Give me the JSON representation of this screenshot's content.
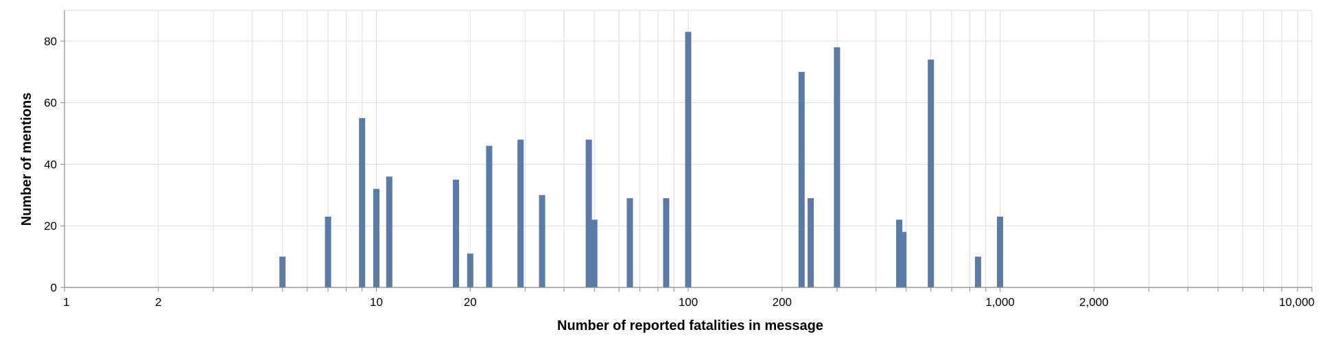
{
  "chart_data": {
    "type": "bar",
    "xscale": "log",
    "xlim": [
      1,
      10000
    ],
    "ylim": [
      0,
      90
    ],
    "xlabel": "Number of reported fatalities in message",
    "ylabel": "Number of mentions",
    "grid": true,
    "bar_color": "#5b7aa8",
    "x_ticks": [
      {
        "value": 1,
        "label": "1"
      },
      {
        "value": 2,
        "label": "2"
      },
      {
        "value": 10,
        "label": "10"
      },
      {
        "value": 20,
        "label": "20"
      },
      {
        "value": 100,
        "label": "100"
      },
      {
        "value": 200,
        "label": "200"
      },
      {
        "value": 1000,
        "label": "1,000"
      },
      {
        "value": 2000,
        "label": "2,000"
      },
      {
        "value": 10000,
        "label": "10,000"
      }
    ],
    "y_ticks": [
      0,
      20,
      40,
      60,
      80
    ],
    "bars": [
      {
        "x": 5,
        "y": 10
      },
      {
        "x": 7,
        "y": 23
      },
      {
        "x": 9,
        "y": 55
      },
      {
        "x": 10,
        "y": 32
      },
      {
        "x": 11,
        "y": 36
      },
      {
        "x": 18,
        "y": 35
      },
      {
        "x": 20,
        "y": 11
      },
      {
        "x": 23,
        "y": 46
      },
      {
        "x": 29,
        "y": 48
      },
      {
        "x": 34,
        "y": 30
      },
      {
        "x": 48,
        "y": 48
      },
      {
        "x": 50,
        "y": 22
      },
      {
        "x": 65,
        "y": 29
      },
      {
        "x": 85,
        "y": 29
      },
      {
        "x": 100,
        "y": 83
      },
      {
        "x": 231,
        "y": 70
      },
      {
        "x": 247,
        "y": 29
      },
      {
        "x": 300,
        "y": 78
      },
      {
        "x": 475,
        "y": 22
      },
      {
        "x": 490,
        "y": 18
      },
      {
        "x": 600,
        "y": 74
      },
      {
        "x": 850,
        "y": 10
      },
      {
        "x": 1000,
        "y": 23
      }
    ]
  }
}
